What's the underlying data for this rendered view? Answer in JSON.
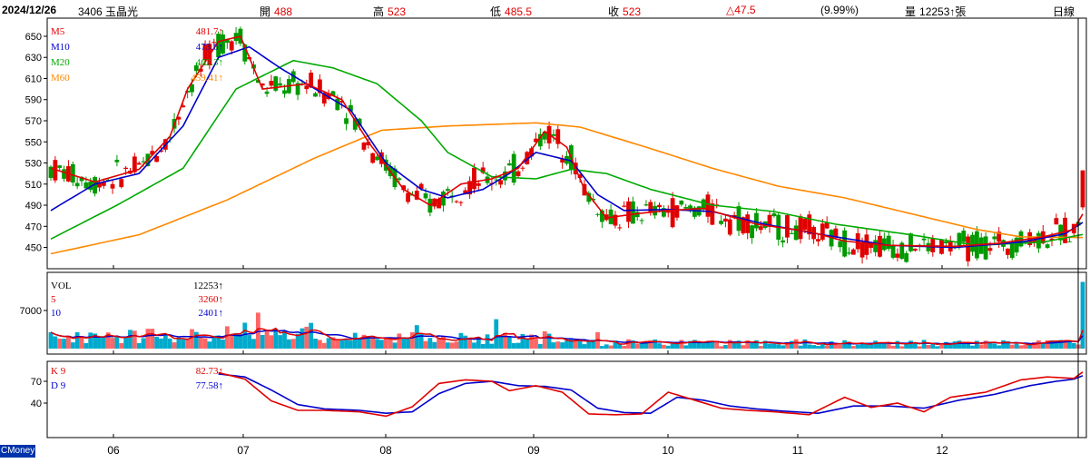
{
  "header": {
    "date": "2024/12/26",
    "stock": "3406 玉晶光",
    "open_label": "開",
    "open_value": "488",
    "high_label": "高",
    "high_value": "523",
    "low_label": "低",
    "low_value": "485.5",
    "close_label": "收",
    "close_value": "523",
    "change": "△47.5",
    "change_pct": "(9.99%)",
    "volume_label": "量",
    "volume_value": "12253↑張",
    "period": "日線"
  },
  "footer": {
    "brand": "CMoney"
  },
  "colors": {
    "up": "#e00000",
    "down": "#009900",
    "ma5": "#e00000",
    "ma10": "#0000cc",
    "ma20": "#00aa00",
    "ma60": "#ff8800",
    "volume_up": "#ff6666",
    "volume_down": "#00aacc"
  },
  "chart_data": {
    "type": "candlestick",
    "x_ticks": [
      "06",
      "07",
      "08",
      "09",
      "10",
      "11",
      "12"
    ],
    "price_panel": {
      "y_ticks": [
        650,
        630,
        610,
        590,
        570,
        550,
        530,
        510,
        490,
        470,
        450
      ],
      "ylim": [
        435,
        662
      ],
      "legend": [
        {
          "name": "M5",
          "value": "481.7↑",
          "color": "#e00000"
        },
        {
          "name": "M10",
          "value": "473.6↑",
          "color": "#0000cc"
        },
        {
          "name": "M20",
          "value": "462.3↑",
          "color": "#00aa00"
        },
        {
          "name": "M60",
          "value": "459.41↑",
          "color": "#ff8800"
        }
      ],
      "last_candle": {
        "open": 488,
        "high": 523,
        "low": 485.5,
        "close": 523
      },
      "ma_anchors": {
        "ma5": [
          [
            0,
            525
          ],
          [
            10,
            512
          ],
          [
            20,
            524
          ],
          [
            27,
            555
          ],
          [
            31,
            600
          ],
          [
            38,
            645
          ],
          [
            43,
            650
          ],
          [
            48,
            600
          ],
          [
            58,
            605
          ],
          [
            66,
            590
          ],
          [
            72,
            550
          ],
          [
            80,
            505
          ],
          [
            86,
            490
          ],
          [
            93,
            510
          ],
          [
            100,
            515
          ],
          [
            106,
            525
          ],
          [
            112,
            560
          ],
          [
            117,
            545
          ],
          [
            121,
            505
          ],
          [
            126,
            478
          ],
          [
            133,
            482
          ],
          [
            140,
            485
          ],
          [
            148,
            487
          ],
          [
            160,
            472
          ],
          [
            172,
            465
          ],
          [
            180,
            456
          ],
          [
            190,
            452
          ],
          [
            205,
            451
          ],
          [
            215,
            454
          ],
          [
            225,
            460
          ],
          [
            232,
            467
          ],
          [
            234,
            481.7
          ]
        ],
        "ma10": [
          [
            0,
            485
          ],
          [
            10,
            510
          ],
          [
            20,
            520
          ],
          [
            30,
            565
          ],
          [
            38,
            630
          ],
          [
            45,
            640
          ],
          [
            52,
            620
          ],
          [
            60,
            600
          ],
          [
            68,
            580
          ],
          [
            76,
            530
          ],
          [
            84,
            505
          ],
          [
            90,
            497
          ],
          [
            98,
            505
          ],
          [
            104,
            520
          ],
          [
            110,
            540
          ],
          [
            118,
            532
          ],
          [
            124,
            500
          ],
          [
            130,
            485
          ],
          [
            140,
            486
          ],
          [
            150,
            484
          ],
          [
            162,
            472
          ],
          [
            175,
            462
          ],
          [
            190,
            452
          ],
          [
            205,
            450
          ],
          [
            220,
            455
          ],
          [
            230,
            463
          ],
          [
            234,
            473.6
          ]
        ],
        "ma20": [
          [
            0,
            458
          ],
          [
            15,
            490
          ],
          [
            30,
            525
          ],
          [
            42,
            600
          ],
          [
            55,
            627
          ],
          [
            64,
            620
          ],
          [
            74,
            605
          ],
          [
            84,
            570
          ],
          [
            90,
            540
          ],
          [
            100,
            517
          ],
          [
            110,
            515
          ],
          [
            118,
            524
          ],
          [
            126,
            520
          ],
          [
            136,
            505
          ],
          [
            150,
            490
          ],
          [
            164,
            484
          ],
          [
            178,
            472
          ],
          [
            195,
            462
          ],
          [
            210,
            452
          ],
          [
            225,
            455
          ],
          [
            234,
            462.3
          ]
        ],
        "ma60": [
          [
            0,
            444
          ],
          [
            20,
            462
          ],
          [
            40,
            495
          ],
          [
            60,
            535
          ],
          [
            75,
            561
          ],
          [
            90,
            565
          ],
          [
            110,
            568
          ],
          [
            120,
            564
          ],
          [
            135,
            545
          ],
          [
            150,
            525
          ],
          [
            165,
            508
          ],
          [
            180,
            497
          ],
          [
            195,
            482
          ],
          [
            210,
            467
          ],
          [
            220,
            460
          ],
          [
            234,
            459.41
          ]
        ]
      }
    },
    "volume_panel": {
      "y_ticks": [
        7000
      ],
      "ylim": [
        0,
        13000
      ],
      "legend": [
        {
          "name": "VOL",
          "value": "12253↑",
          "color": "#000000"
        },
        {
          "name": "5",
          "value": "3260↑",
          "color": "#e00000"
        },
        {
          "name": "10",
          "value": "2401↑",
          "color": "#0000cc"
        }
      ],
      "last_volume": 12253
    },
    "kd_panel": {
      "y_ticks": [
        70,
        40
      ],
      "ylim": [
        0,
        90
      ],
      "legend": [
        {
          "name": "K 9",
          "value": "82.73↑",
          "color": "#e00000"
        },
        {
          "name": "D 9",
          "value": "77.58↑",
          "color": "#0000cc"
        }
      ],
      "k_anchors": [
        [
          38,
          82
        ],
        [
          44,
          73
        ],
        [
          50,
          43
        ],
        [
          56,
          30
        ],
        [
          62,
          30
        ],
        [
          70,
          28
        ],
        [
          76,
          22
        ],
        [
          82,
          35
        ],
        [
          88,
          67
        ],
        [
          94,
          72
        ],
        [
          100,
          70
        ],
        [
          104,
          57
        ],
        [
          110,
          64
        ],
        [
          116,
          55
        ],
        [
          122,
          25
        ],
        [
          128,
          24
        ],
        [
          134,
          25
        ],
        [
          140,
          55
        ],
        [
          146,
          44
        ],
        [
          152,
          33
        ],
        [
          158,
          30
        ],
        [
          164,
          28
        ],
        [
          172,
          24
        ],
        [
          180,
          48
        ],
        [
          186,
          34
        ],
        [
          192,
          40
        ],
        [
          198,
          28
        ],
        [
          204,
          48
        ],
        [
          212,
          55
        ],
        [
          220,
          72
        ],
        [
          226,
          76
        ],
        [
          232,
          74
        ],
        [
          234,
          82.73
        ]
      ],
      "d_anchors": [
        [
          38,
          80
        ],
        [
          44,
          76
        ],
        [
          50,
          58
        ],
        [
          56,
          38
        ],
        [
          62,
          32
        ],
        [
          70,
          30
        ],
        [
          76,
          26
        ],
        [
          82,
          28
        ],
        [
          88,
          53
        ],
        [
          94,
          67
        ],
        [
          100,
          70
        ],
        [
          106,
          64
        ],
        [
          112,
          63
        ],
        [
          118,
          58
        ],
        [
          124,
          33
        ],
        [
          130,
          27
        ],
        [
          136,
          26
        ],
        [
          142,
          48
        ],
        [
          148,
          44
        ],
        [
          154,
          36
        ],
        [
          160,
          32
        ],
        [
          166,
          29
        ],
        [
          174,
          26
        ],
        [
          182,
          36
        ],
        [
          190,
          36
        ],
        [
          198,
          33
        ],
        [
          206,
          44
        ],
        [
          214,
          52
        ],
        [
          222,
          64
        ],
        [
          228,
          70
        ],
        [
          232,
          73
        ],
        [
          234,
          77.58
        ]
      ]
    }
  }
}
